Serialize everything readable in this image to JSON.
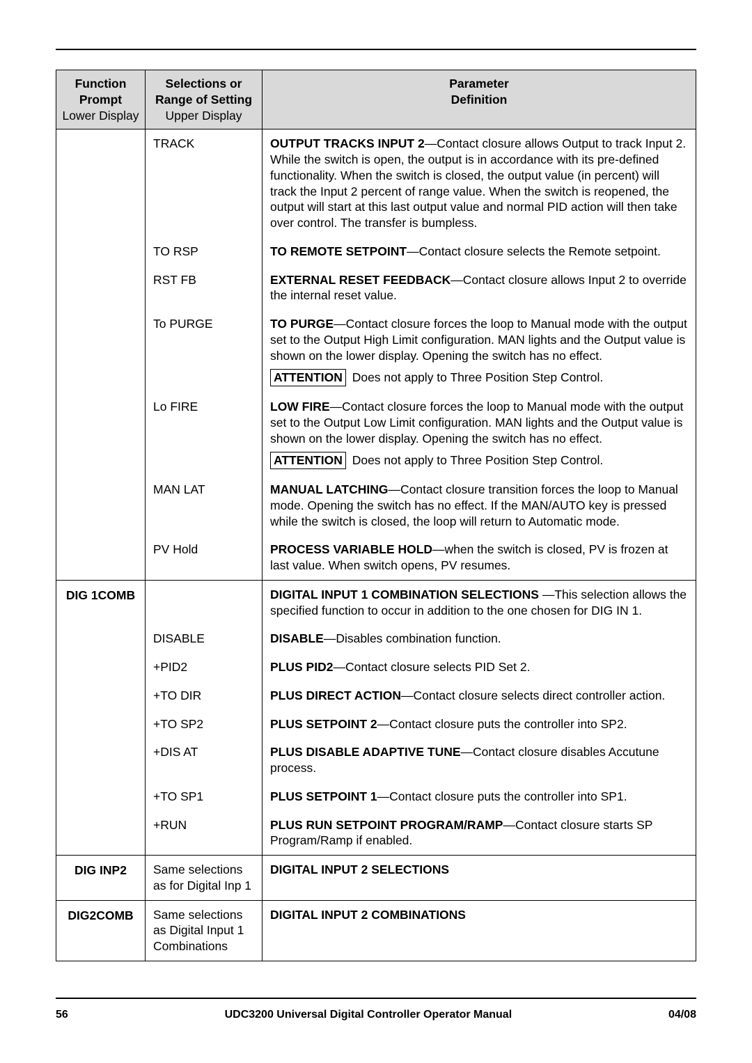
{
  "header": {
    "col1_line1": "Function",
    "col1_line2": "Prompt",
    "col1_line3": "Lower Display",
    "col2_line1": "Selections or",
    "col2_line2": "Range of Setting",
    "col2_line3": "Upper Display",
    "col3_line1": "Parameter",
    "col3_line2": "Definition"
  },
  "group1": {
    "prompt": "",
    "rows": [
      {
        "sel": "TRACK",
        "def_bold": "OUTPUT TRACKS INPUT 2",
        "def_rest": "—Contact closure allows Output to track Input 2. While the switch is open, the output is in accordance with its pre-defined functionality. When the switch is closed, the output value (in percent) will track the Input 2 percent of range value. When the switch is reopened, the output will start at this last output value and normal PID action will then take over control. The transfer is bumpless."
      },
      {
        "sel": "TO RSP",
        "def_bold": "TO REMOTE SETPOINT",
        "def_rest": "—Contact closure selects the Remote setpoint."
      },
      {
        "sel": "RST FB",
        "def_bold": "EXTERNAL RESET FEEDBACK",
        "def_rest": "—Contact closure allows Input 2 to override the internal reset value."
      },
      {
        "sel": "To PURGE",
        "def_bold": "TO PURGE",
        "def_rest": "—Contact closure forces the loop to Manual mode with the output set to the Output High Limit configuration. MAN lights and the Output value is shown on the lower display. Opening the switch has no effect.",
        "attn": "ATTENTION",
        "attn_rest": " Does not apply to Three Position Step Control."
      },
      {
        "sel": "Lo FIRE",
        "def_bold": "LOW FIRE",
        "def_rest": "—Contact closure forces the loop to Manual mode with the output set to the Output Low Limit configuration. MAN lights and the Output value is shown on the lower display. Opening the switch has no effect.",
        "attn": "ATTENTION",
        "attn_rest": " Does not apply to Three Position Step Control."
      },
      {
        "sel": "MAN LAT",
        "def_bold": "MANUAL LATCHING",
        "def_rest": "—Contact closure transition forces the loop to Manual mode. Opening the switch has no effect. If the MAN/AUTO key is pressed while the switch is closed, the loop will return to Automatic mode."
      },
      {
        "sel": "PV Hold",
        "def_bold": "PROCESS VARIABLE HOLD",
        "def_rest": "—when the switch is closed, PV is frozen at last value. When switch opens, PV resumes."
      }
    ]
  },
  "group2": {
    "prompt": "DIG 1COMB",
    "intro_bold": "DIGITAL INPUT 1 COMBINATION SELECTIONS ",
    "intro_rest": "—This selection allows the specified function to occur in addition to the one chosen for DIG IN 1.",
    "rows": [
      {
        "sel": "DISABLE",
        "def_bold": "DISABLE",
        "def_rest": "—Disables combination function."
      },
      {
        "sel": "+PID2",
        "def_bold": "PLUS PID2",
        "def_rest": "—Contact closure selects PID Set 2."
      },
      {
        "sel": "+TO DIR",
        "def_bold": "PLUS DIRECT ACTION",
        "def_rest": "—Contact closure selects direct controller action."
      },
      {
        "sel": "+TO SP2",
        "def_bold": "PLUS SETPOINT 2",
        "def_rest": "—Contact closure puts the controller into SP2."
      },
      {
        "sel": "+DIS AT",
        "def_bold": "PLUS DISABLE ADAPTIVE TUNE",
        "def_rest": "—Contact closure disables Accutune process."
      },
      {
        "sel": "+TO SP1",
        "def_bold": "PLUS SETPOINT 1",
        "def_rest": "—Contact closure puts the controller into SP1."
      },
      {
        "sel": "+RUN",
        "def_bold": "PLUS RUN SETPOINT PROGRAM/RAMP",
        "def_rest": "—Contact closure starts SP Program/Ramp if enabled."
      }
    ]
  },
  "group3": {
    "prompt": "DIG INP2",
    "sel": "Same selections as for Digital Inp 1",
    "def_bold": "DIGITAL INPUT 2 SELECTIONS"
  },
  "group4": {
    "prompt": "DIG2COMB",
    "sel": "Same selections as Digital Input 1 Combinations",
    "def_bold": "DIGITAL INPUT 2 COMBINATIONS"
  },
  "footer": {
    "page": "56",
    "title": "UDC3200 Universal Digital Controller Operator Manual",
    "date": "04/08"
  },
  "colors": {
    "header_bg": "#d9d9d9",
    "rule": "#000000",
    "text": "#000000"
  }
}
